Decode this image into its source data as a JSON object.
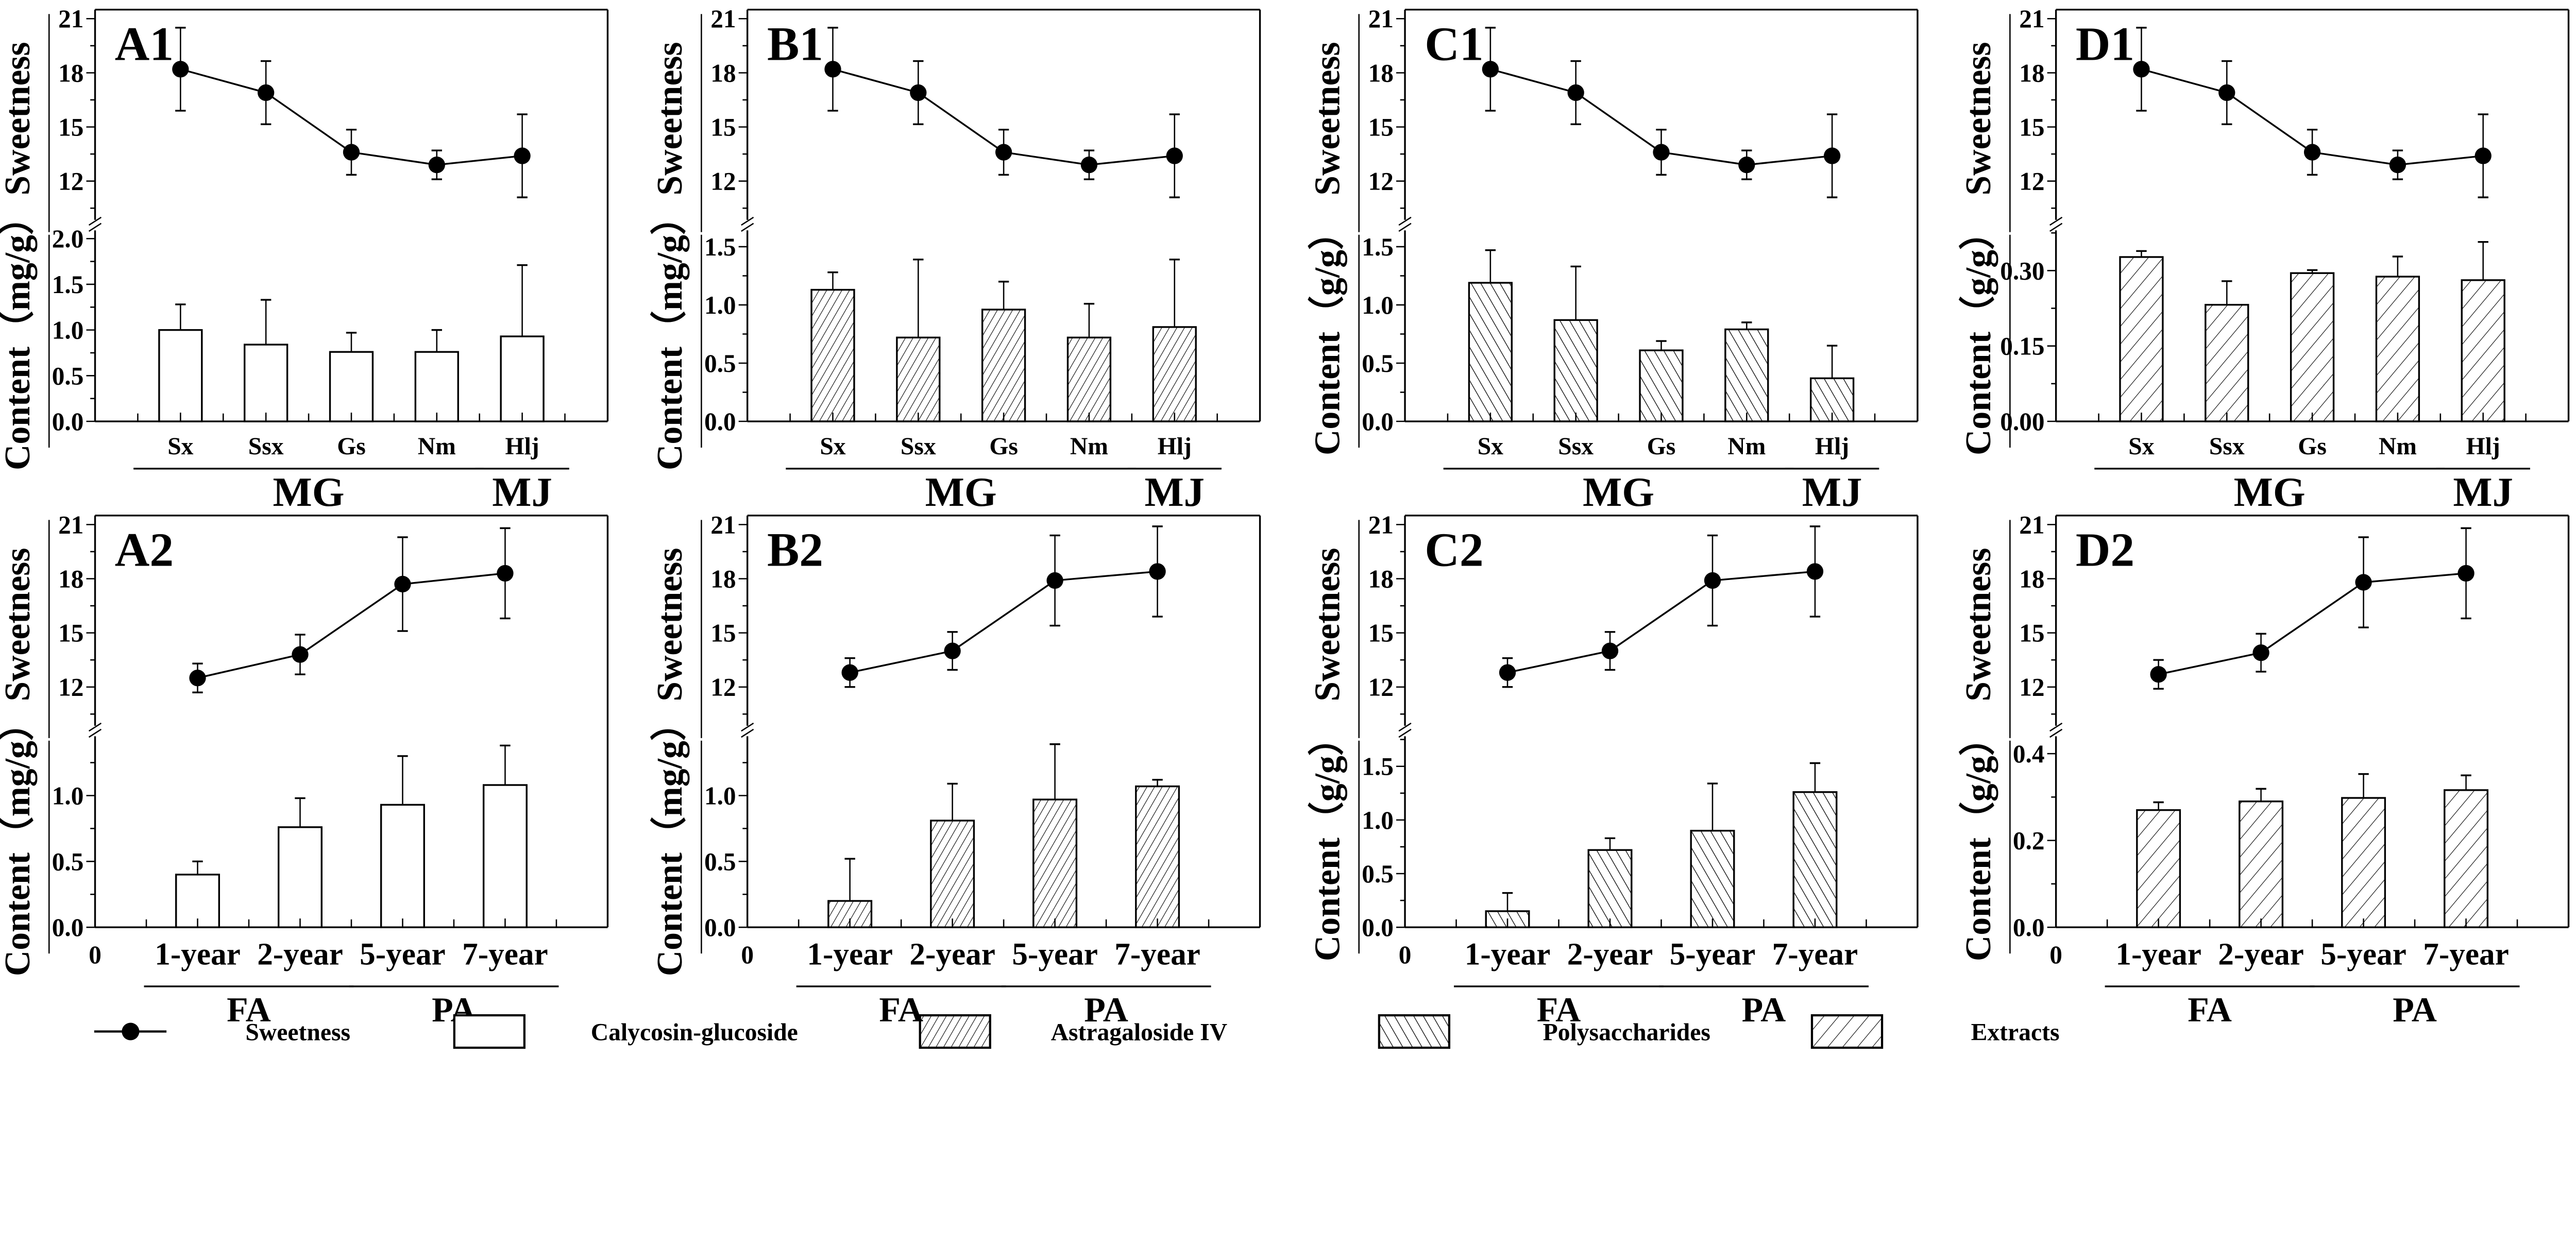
{
  "legend": [
    {
      "label": "Sweetness",
      "marker": "line-dot"
    },
    {
      "label": "Calycosin-glucoside",
      "marker": "open-box"
    },
    {
      "label": "Astragaloside IV",
      "marker": "fine-forward-hatch"
    },
    {
      "label": "Polysaccharides",
      "marker": "back-hatch"
    },
    {
      "label": "Extracts",
      "marker": "wide-forward-hatch"
    }
  ],
  "chart_data": [
    {
      "panel": "A1",
      "type": "bar+line",
      "categories": [
        "Sx",
        "Ssx",
        "Gs",
        "Nm",
        "Hlj"
      ],
      "groups": [
        {
          "label": "MG",
          "from": 0,
          "to": 3
        },
        {
          "label": "MJ",
          "from": 4,
          "to": 4
        }
      ],
      "zero_label": "",
      "sweetness": {
        "ylabel": "Sweetness",
        "values": [
          18.2,
          16.9,
          13.6,
          12.9,
          13.4
        ],
        "errors": [
          2.3,
          1.75,
          1.25,
          0.8,
          2.3
        ],
        "ylim": [
          9.9,
          21.5
        ],
        "yticks": [
          "12",
          "15",
          "18",
          "21"
        ]
      },
      "content": {
        "series": "Calycosin-glucoside",
        "ylabel": "Content（mg/g）",
        "values": [
          1.0,
          0.84,
          0.76,
          0.76,
          0.93
        ],
        "errors": [
          0.28,
          0.49,
          0.21,
          0.24,
          0.78
        ],
        "ylim": [
          0,
          2.09
        ],
        "yticks": [
          "0.0",
          "0.5",
          "1.0",
          "1.5",
          "2.0"
        ],
        "pattern": "none"
      }
    },
    {
      "panel": "B1",
      "type": "bar+line",
      "categories": [
        "Sx",
        "Ssx",
        "Gs",
        "Nm",
        "Hlj"
      ],
      "groups": [
        {
          "label": "MG",
          "from": 0,
          "to": 3
        },
        {
          "label": "MJ",
          "from": 4,
          "to": 4
        }
      ],
      "zero_label": "",
      "sweetness": {
        "ylabel": "Sweetness",
        "values": [
          18.2,
          16.9,
          13.6,
          12.9,
          13.4
        ],
        "errors": [
          2.3,
          1.75,
          1.25,
          0.8,
          2.3
        ],
        "ylim": [
          9.9,
          21.5
        ],
        "yticks": [
          "12",
          "15",
          "18",
          "21"
        ]
      },
      "content": {
        "series": "Astragaloside IV",
        "ylabel": "Content（mg/g）",
        "values": [
          1.13,
          0.72,
          0.96,
          0.72,
          0.81
        ],
        "errors": [
          0.15,
          0.67,
          0.24,
          0.29,
          0.58
        ],
        "ylim": [
          0,
          1.64
        ],
        "yticks": [
          "0.0",
          "0.5",
          "1.0",
          "1.5"
        ],
        "pattern": "B"
      }
    },
    {
      "panel": "C1",
      "type": "bar+line",
      "categories": [
        "Sx",
        "Ssx",
        "Gs",
        "Nm",
        "Hlj"
      ],
      "groups": [
        {
          "label": "MG",
          "from": 0,
          "to": 3
        },
        {
          "label": "MJ",
          "from": 4,
          "to": 4
        }
      ],
      "zero_label": "",
      "sweetness": {
        "ylabel": "Sweetness",
        "values": [
          18.2,
          16.9,
          13.6,
          12.9,
          13.4
        ],
        "errors": [
          2.3,
          1.75,
          1.25,
          0.8,
          2.3
        ],
        "ylim": [
          9.9,
          21.5
        ],
        "yticks": [
          "12",
          "15",
          "18",
          "21"
        ]
      },
      "content": {
        "series": "Polysaccharides",
        "ylabel": "Content（g/g）",
        "values": [
          1.19,
          0.87,
          0.61,
          0.79,
          0.37
        ],
        "errors": [
          0.28,
          0.46,
          0.08,
          0.06,
          0.28
        ],
        "ylim": [
          0,
          1.64
        ],
        "yticks": [
          "0.0",
          "0.5",
          "1.0",
          "1.5"
        ],
        "pattern": "C"
      }
    },
    {
      "panel": "D1",
      "type": "bar+line",
      "categories": [
        "Sx",
        "Ssx",
        "Gs",
        "Nm",
        "Hlj"
      ],
      "groups": [
        {
          "label": "MG",
          "from": 0,
          "to": 3
        },
        {
          "label": "MJ",
          "from": 4,
          "to": 4
        }
      ],
      "zero_label": "",
      "sweetness": {
        "ylabel": "Sweetness",
        "values": [
          18.2,
          16.9,
          13.6,
          12.9,
          13.4
        ],
        "errors": [
          2.3,
          1.75,
          1.25,
          0.8,
          2.3
        ],
        "ylim": [
          9.9,
          21.5
        ],
        "yticks": [
          "12",
          "15",
          "18",
          "21"
        ]
      },
      "content": {
        "series": "Extracts",
        "ylabel": "Content（g/g）",
        "values": [
          0.327,
          0.232,
          0.295,
          0.288,
          0.281
        ],
        "errors": [
          0.012,
          0.047,
          0.006,
          0.04,
          0.076
        ],
        "ylim": [
          0,
          0.38
        ],
        "yticks": [
          "0.00",
          "0.15",
          "0.30"
        ],
        "pattern": "D"
      }
    },
    {
      "panel": "A2",
      "type": "bar+line",
      "categories": [
        "1-year",
        "2-year",
        "5-year",
        "7-year"
      ],
      "groups": [
        {
          "label": "FA",
          "from": 0,
          "to": 1
        },
        {
          "label": "PA",
          "from": 2,
          "to": 3
        }
      ],
      "zero_label": "0",
      "sweetness": {
        "ylabel": "Sweetness",
        "values": [
          12.5,
          13.8,
          17.7,
          18.3
        ],
        "errors": [
          0.8,
          1.1,
          2.6,
          2.5
        ],
        "ylim": [
          9.9,
          21.5
        ],
        "yticks": [
          "12",
          "15",
          "18",
          "21"
        ]
      },
      "content": {
        "series": "Calycosin-glucoside",
        "ylabel": "Content（mg/g）",
        "values": [
          0.4,
          0.76,
          0.93,
          1.08
        ],
        "errors": [
          0.1,
          0.22,
          0.37,
          0.3
        ],
        "ylim": [
          0,
          1.45
        ],
        "yticks": [
          "0.0",
          "0.5",
          "1.0"
        ],
        "pattern": "none"
      }
    },
    {
      "panel": "B2",
      "type": "bar+line",
      "categories": [
        "1-year",
        "2-year",
        "5-year",
        "7-year"
      ],
      "groups": [
        {
          "label": "FA",
          "from": 0,
          "to": 1
        },
        {
          "label": "PA",
          "from": 2,
          "to": 3
        }
      ],
      "zero_label": "0",
      "sweetness": {
        "ylabel": "Sweetness",
        "values": [
          12.8,
          14.0,
          17.9,
          18.4
        ],
        "errors": [
          0.8,
          1.05,
          2.5,
          2.5
        ],
        "ylim": [
          9.9,
          21.5
        ],
        "yticks": [
          "12",
          "15",
          "18",
          "21"
        ]
      },
      "content": {
        "series": "Astragaloside IV",
        "ylabel": "Content（mg/g）",
        "values": [
          0.2,
          0.81,
          0.97,
          1.07
        ],
        "errors": [
          0.32,
          0.28,
          0.42,
          0.05
        ],
        "ylim": [
          0,
          1.45
        ],
        "yticks": [
          "0.0",
          "0.5",
          "1.0"
        ],
        "pattern": "B"
      }
    },
    {
      "panel": "C2",
      "type": "bar+line",
      "categories": [
        "1-year",
        "2-year",
        "5-year",
        "7-year"
      ],
      "groups": [
        {
          "label": "FA",
          "from": 0,
          "to": 1
        },
        {
          "label": "PA",
          "from": 2,
          "to": 3
        }
      ],
      "zero_label": "0",
      "sweetness": {
        "ylabel": "Sweetness",
        "values": [
          12.8,
          14.0,
          17.9,
          18.4
        ],
        "errors": [
          0.8,
          1.05,
          2.5,
          2.5
        ],
        "ylim": [
          9.9,
          21.5
        ],
        "yticks": [
          "12",
          "15",
          "18",
          "21"
        ]
      },
      "content": {
        "series": "Polysaccharides",
        "ylabel": "Content（g/g）",
        "values": [
          0.15,
          0.72,
          0.9,
          1.26
        ],
        "errors": [
          0.17,
          0.11,
          0.44,
          0.27
        ],
        "ylim": [
          0,
          1.78
        ],
        "yticks": [
          "0.0",
          "0.5",
          "1.0",
          "1.5"
        ],
        "pattern": "C"
      }
    },
    {
      "panel": "D2",
      "type": "bar+line",
      "categories": [
        "1-year",
        "2-year",
        "5-year",
        "7-year"
      ],
      "groups": [
        {
          "label": "FA",
          "from": 0,
          "to": 1
        },
        {
          "label": "PA",
          "from": 2,
          "to": 3
        }
      ],
      "zero_label": "0",
      "sweetness": {
        "ylabel": "Sweetness",
        "values": [
          12.7,
          13.9,
          17.8,
          18.3
        ],
        "errors": [
          0.8,
          1.05,
          2.5,
          2.5
        ],
        "ylim": [
          9.9,
          21.5
        ],
        "yticks": [
          "12",
          "15",
          "18",
          "21"
        ]
      },
      "content": {
        "series": "Extracts",
        "ylabel": "Content（g/g）",
        "values": [
          0.27,
          0.29,
          0.298,
          0.316
        ],
        "errors": [
          0.018,
          0.029,
          0.055,
          0.034
        ],
        "ylim": [
          0,
          0.44
        ],
        "yticks": [
          "0.0",
          "0.2",
          "0.4"
        ],
        "pattern": "D"
      }
    }
  ]
}
